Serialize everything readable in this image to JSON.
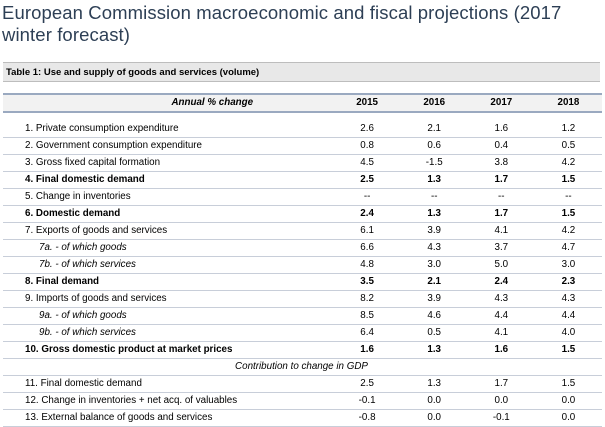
{
  "title": "European Commission macroeconomic and fiscal projections (2017 winter forecast)",
  "table_caption": "Table 1: Use and supply of goods and services (volume)",
  "header": {
    "label": "Annual % change",
    "years": [
      "2015",
      "2016",
      "2017",
      "2018"
    ]
  },
  "rows": [
    {
      "label": "1. Private consumption expenditure",
      "values": [
        "2.6",
        "2.1",
        "1.6",
        "1.2"
      ]
    },
    {
      "label": "2. Government consumption expenditure",
      "values": [
        "0.8",
        "0.6",
        "0.4",
        "0.5"
      ]
    },
    {
      "label": "3. Gross fixed capital formation",
      "values": [
        "4.5",
        "-1.5",
        "3.8",
        "4.2"
      ]
    },
    {
      "label": "4. Final domestic demand",
      "values": [
        "2.5",
        "1.3",
        "1.7",
        "1.5"
      ]
    },
    {
      "label": "5. Change in inventories",
      "values": [
        "--",
        "--",
        "--",
        "--"
      ]
    },
    {
      "label": "6. Domestic demand",
      "values": [
        "2.4",
        "1.3",
        "1.7",
        "1.5"
      ]
    },
    {
      "label": "7. Exports of goods and services",
      "values": [
        "6.1",
        "3.9",
        "4.1",
        "4.2"
      ]
    },
    {
      "label": "7a.  - of which goods",
      "values": [
        "6.6",
        "4.3",
        "3.7",
        "4.7"
      ]
    },
    {
      "label": "7b.  - of which services",
      "values": [
        "4.8",
        "3.0",
        "5.0",
        "3.0"
      ]
    },
    {
      "label": "8. Final demand",
      "values": [
        "3.5",
        "2.1",
        "2.4",
        "2.3"
      ]
    },
    {
      "label": "9. Imports of goods and services",
      "values": [
        "8.2",
        "3.9",
        "4.3",
        "4.3"
      ]
    },
    {
      "label": "9a.  - of which goods",
      "values": [
        "8.5",
        "4.6",
        "4.4",
        "4.4"
      ]
    },
    {
      "label": "9b.  - of which services",
      "values": [
        "6.4",
        "0.5",
        "4.1",
        "4.0"
      ]
    },
    {
      "label": "10. Gross domestic product at market prices",
      "values": [
        "1.6",
        "1.3",
        "1.6",
        "1.5"
      ]
    },
    {
      "label": "Contribution to change in GDP"
    },
    {
      "label": "11. Final domestic demand",
      "values": [
        "2.5",
        "1.3",
        "1.7",
        "1.5"
      ]
    },
    {
      "label": "12. Change in inventories + net acq. of valuables",
      "values": [
        "-0.1",
        "0.0",
        "0.0",
        "0.0"
      ]
    },
    {
      "label": "13. External balance of goods and services",
      "values": [
        "-0.8",
        "0.0",
        "-0.1",
        "0.0"
      ]
    }
  ]
}
